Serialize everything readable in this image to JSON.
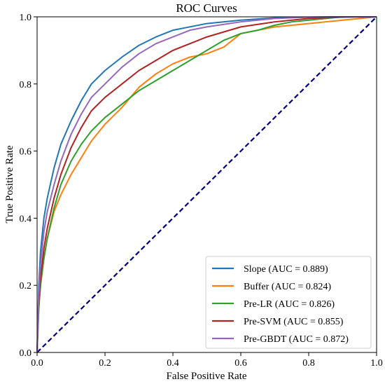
{
  "chart_data": {
    "type": "line",
    "title": "ROC Curves",
    "xlabel": "False Positive Rate",
    "ylabel": "True Positive Rate",
    "xlim": [
      0.0,
      1.0
    ],
    "ylim": [
      0.0,
      1.0
    ],
    "xticks": [
      "0.0",
      "0.2",
      "0.4",
      "0.6",
      "0.8",
      "1.0"
    ],
    "yticks": [
      "0.0",
      "0.2",
      "0.4",
      "0.6",
      "0.8",
      "1.0"
    ],
    "grid": false,
    "legend_position": "lower-right",
    "series": [
      {
        "name": "Slope (AUC = 0.889)",
        "color": "#1f77b4",
        "x": [
          0,
          0.005,
          0.01,
          0.02,
          0.03,
          0.05,
          0.07,
          0.1,
          0.13,
          0.16,
          0.2,
          0.25,
          0.3,
          0.35,
          0.4,
          0.5,
          0.6,
          0.7,
          0.8,
          0.9,
          1.0
        ],
        "y": [
          0,
          0.2,
          0.3,
          0.4,
          0.46,
          0.55,
          0.62,
          0.69,
          0.75,
          0.8,
          0.84,
          0.88,
          0.915,
          0.94,
          0.96,
          0.98,
          0.99,
          0.997,
          0.999,
          1.0,
          1.0
        ]
      },
      {
        "name": "Buffer (AUC = 0.824)",
        "color": "#ff7f0e",
        "x": [
          0,
          0.005,
          0.01,
          0.02,
          0.03,
          0.05,
          0.07,
          0.1,
          0.13,
          0.16,
          0.2,
          0.25,
          0.3,
          0.35,
          0.4,
          0.45,
          0.5,
          0.55,
          0.6,
          0.65,
          0.7,
          0.75,
          0.8,
          0.85,
          0.9,
          1.0
        ],
        "y": [
          0,
          0.14,
          0.2,
          0.28,
          0.34,
          0.42,
          0.47,
          0.53,
          0.58,
          0.63,
          0.68,
          0.73,
          0.79,
          0.83,
          0.86,
          0.88,
          0.89,
          0.91,
          0.95,
          0.96,
          0.97,
          0.975,
          0.98,
          0.985,
          0.99,
          1.0
        ]
      },
      {
        "name": "Pre-LR (AUC = 0.826)",
        "color": "#2ca02c",
        "x": [
          0,
          0.005,
          0.01,
          0.02,
          0.03,
          0.05,
          0.07,
          0.1,
          0.13,
          0.16,
          0.2,
          0.25,
          0.3,
          0.35,
          0.4,
          0.45,
          0.5,
          0.55,
          0.6,
          0.65,
          0.7,
          0.75,
          0.8,
          0.85,
          0.9,
          1.0
        ],
        "y": [
          0,
          0.13,
          0.2,
          0.28,
          0.34,
          0.43,
          0.5,
          0.57,
          0.62,
          0.66,
          0.7,
          0.74,
          0.78,
          0.81,
          0.84,
          0.87,
          0.9,
          0.93,
          0.95,
          0.96,
          0.975,
          0.985,
          0.99,
          0.995,
          1.0,
          1.0
        ]
      },
      {
        "name": "Pre-SVM (AUC = 0.855)",
        "color": "#b22222",
        "x": [
          0,
          0.005,
          0.01,
          0.02,
          0.03,
          0.05,
          0.07,
          0.1,
          0.13,
          0.16,
          0.2,
          0.25,
          0.3,
          0.35,
          0.4,
          0.45,
          0.5,
          0.6,
          0.7,
          0.8,
          0.9,
          1.0
        ],
        "y": [
          0,
          0.15,
          0.22,
          0.31,
          0.37,
          0.46,
          0.53,
          0.61,
          0.67,
          0.72,
          0.76,
          0.8,
          0.84,
          0.87,
          0.9,
          0.92,
          0.94,
          0.97,
          0.985,
          0.995,
          0.999,
          1.0
        ]
      },
      {
        "name": "Pre-GBDT (AUC = 0.872)",
        "color": "#9467bd",
        "x": [
          0,
          0.005,
          0.01,
          0.02,
          0.03,
          0.05,
          0.07,
          0.1,
          0.13,
          0.16,
          0.2,
          0.25,
          0.3,
          0.35,
          0.4,
          0.45,
          0.5,
          0.6,
          0.7,
          0.8,
          0.9,
          1.0
        ],
        "y": [
          0,
          0.17,
          0.26,
          0.36,
          0.42,
          0.5,
          0.57,
          0.65,
          0.71,
          0.76,
          0.8,
          0.85,
          0.89,
          0.92,
          0.94,
          0.96,
          0.97,
          0.985,
          0.995,
          0.999,
          1.0,
          1.0
        ]
      }
    ],
    "reference_line": {
      "color": "#00007f",
      "style": "dashed",
      "x": [
        0,
        1
      ],
      "y": [
        0,
        1
      ]
    }
  }
}
